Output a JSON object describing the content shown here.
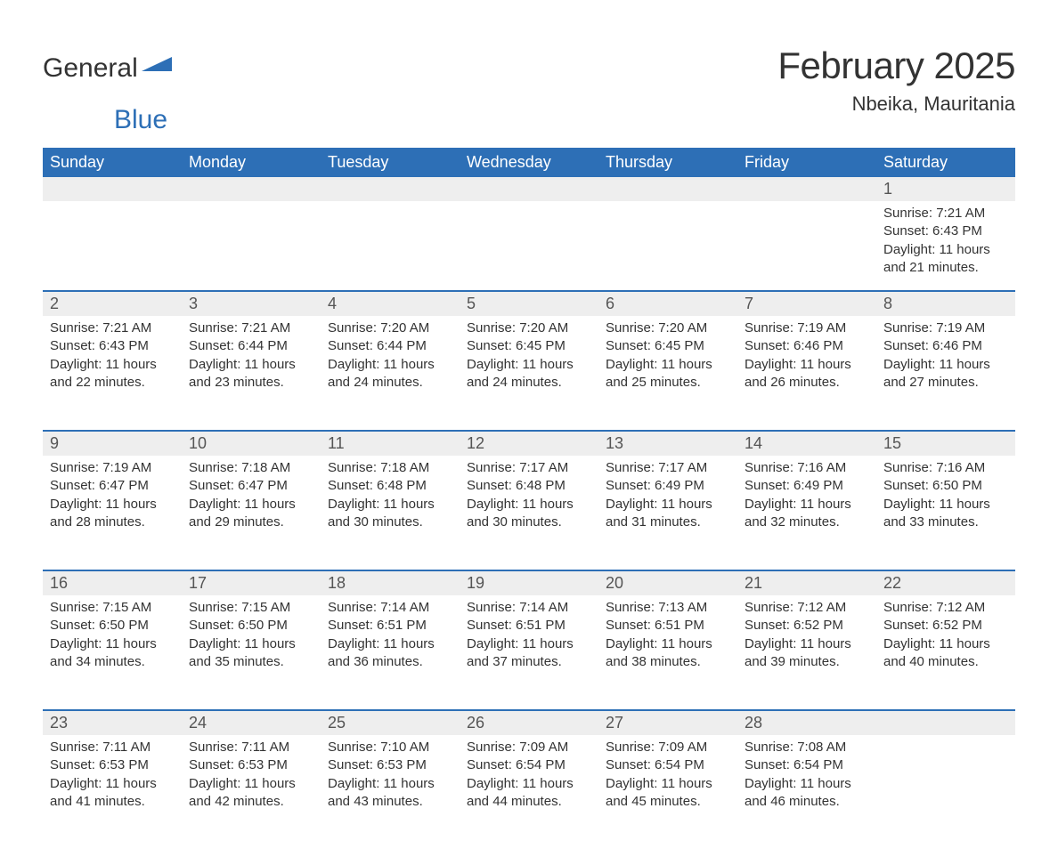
{
  "brand": {
    "name_part1": "General",
    "name_part2": "Blue",
    "accent_color": "#2d6fb6"
  },
  "header": {
    "month_title": "February 2025",
    "location": "Nbeika, Mauritania"
  },
  "styling": {
    "header_bg": "#2d6fb6",
    "header_text": "#ffffff",
    "daynum_bg": "#eeeeee",
    "row_border_color": "#2d6fb6",
    "body_text": "#333333",
    "page_bg": "#ffffff",
    "title_fontsize": 42,
    "location_fontsize": 22,
    "weekday_fontsize": 18,
    "daynum_fontsize": 18,
    "cell_fontsize": 15
  },
  "weekdays": [
    "Sunday",
    "Monday",
    "Tuesday",
    "Wednesday",
    "Thursday",
    "Friday",
    "Saturday"
  ],
  "weeks": [
    {
      "daynums": [
        "",
        "",
        "",
        "",
        "",
        "",
        "1"
      ],
      "cells": [
        null,
        null,
        null,
        null,
        null,
        null,
        {
          "sunrise": "Sunrise: 7:21 AM",
          "sunset": "Sunset: 6:43 PM",
          "day1": "Daylight: 11 hours",
          "day2": "and 21 minutes."
        }
      ]
    },
    {
      "daynums": [
        "2",
        "3",
        "4",
        "5",
        "6",
        "7",
        "8"
      ],
      "cells": [
        {
          "sunrise": "Sunrise: 7:21 AM",
          "sunset": "Sunset: 6:43 PM",
          "day1": "Daylight: 11 hours",
          "day2": "and 22 minutes."
        },
        {
          "sunrise": "Sunrise: 7:21 AM",
          "sunset": "Sunset: 6:44 PM",
          "day1": "Daylight: 11 hours",
          "day2": "and 23 minutes."
        },
        {
          "sunrise": "Sunrise: 7:20 AM",
          "sunset": "Sunset: 6:44 PM",
          "day1": "Daylight: 11 hours",
          "day2": "and 24 minutes."
        },
        {
          "sunrise": "Sunrise: 7:20 AM",
          "sunset": "Sunset: 6:45 PM",
          "day1": "Daylight: 11 hours",
          "day2": "and 24 minutes."
        },
        {
          "sunrise": "Sunrise: 7:20 AM",
          "sunset": "Sunset: 6:45 PM",
          "day1": "Daylight: 11 hours",
          "day2": "and 25 minutes."
        },
        {
          "sunrise": "Sunrise: 7:19 AM",
          "sunset": "Sunset: 6:46 PM",
          "day1": "Daylight: 11 hours",
          "day2": "and 26 minutes."
        },
        {
          "sunrise": "Sunrise: 7:19 AM",
          "sunset": "Sunset: 6:46 PM",
          "day1": "Daylight: 11 hours",
          "day2": "and 27 minutes."
        }
      ]
    },
    {
      "daynums": [
        "9",
        "10",
        "11",
        "12",
        "13",
        "14",
        "15"
      ],
      "cells": [
        {
          "sunrise": "Sunrise: 7:19 AM",
          "sunset": "Sunset: 6:47 PM",
          "day1": "Daylight: 11 hours",
          "day2": "and 28 minutes."
        },
        {
          "sunrise": "Sunrise: 7:18 AM",
          "sunset": "Sunset: 6:47 PM",
          "day1": "Daylight: 11 hours",
          "day2": "and 29 minutes."
        },
        {
          "sunrise": "Sunrise: 7:18 AM",
          "sunset": "Sunset: 6:48 PM",
          "day1": "Daylight: 11 hours",
          "day2": "and 30 minutes."
        },
        {
          "sunrise": "Sunrise: 7:17 AM",
          "sunset": "Sunset: 6:48 PM",
          "day1": "Daylight: 11 hours",
          "day2": "and 30 minutes."
        },
        {
          "sunrise": "Sunrise: 7:17 AM",
          "sunset": "Sunset: 6:49 PM",
          "day1": "Daylight: 11 hours",
          "day2": "and 31 minutes."
        },
        {
          "sunrise": "Sunrise: 7:16 AM",
          "sunset": "Sunset: 6:49 PM",
          "day1": "Daylight: 11 hours",
          "day2": "and 32 minutes."
        },
        {
          "sunrise": "Sunrise: 7:16 AM",
          "sunset": "Sunset: 6:50 PM",
          "day1": "Daylight: 11 hours",
          "day2": "and 33 minutes."
        }
      ]
    },
    {
      "daynums": [
        "16",
        "17",
        "18",
        "19",
        "20",
        "21",
        "22"
      ],
      "cells": [
        {
          "sunrise": "Sunrise: 7:15 AM",
          "sunset": "Sunset: 6:50 PM",
          "day1": "Daylight: 11 hours",
          "day2": "and 34 minutes."
        },
        {
          "sunrise": "Sunrise: 7:15 AM",
          "sunset": "Sunset: 6:50 PM",
          "day1": "Daylight: 11 hours",
          "day2": "and 35 minutes."
        },
        {
          "sunrise": "Sunrise: 7:14 AM",
          "sunset": "Sunset: 6:51 PM",
          "day1": "Daylight: 11 hours",
          "day2": "and 36 minutes."
        },
        {
          "sunrise": "Sunrise: 7:14 AM",
          "sunset": "Sunset: 6:51 PM",
          "day1": "Daylight: 11 hours",
          "day2": "and 37 minutes."
        },
        {
          "sunrise": "Sunrise: 7:13 AM",
          "sunset": "Sunset: 6:51 PM",
          "day1": "Daylight: 11 hours",
          "day2": "and 38 minutes."
        },
        {
          "sunrise": "Sunrise: 7:12 AM",
          "sunset": "Sunset: 6:52 PM",
          "day1": "Daylight: 11 hours",
          "day2": "and 39 minutes."
        },
        {
          "sunrise": "Sunrise: 7:12 AM",
          "sunset": "Sunset: 6:52 PM",
          "day1": "Daylight: 11 hours",
          "day2": "and 40 minutes."
        }
      ]
    },
    {
      "daynums": [
        "23",
        "24",
        "25",
        "26",
        "27",
        "28",
        ""
      ],
      "cells": [
        {
          "sunrise": "Sunrise: 7:11 AM",
          "sunset": "Sunset: 6:53 PM",
          "day1": "Daylight: 11 hours",
          "day2": "and 41 minutes."
        },
        {
          "sunrise": "Sunrise: 7:11 AM",
          "sunset": "Sunset: 6:53 PM",
          "day1": "Daylight: 11 hours",
          "day2": "and 42 minutes."
        },
        {
          "sunrise": "Sunrise: 7:10 AM",
          "sunset": "Sunset: 6:53 PM",
          "day1": "Daylight: 11 hours",
          "day2": "and 43 minutes."
        },
        {
          "sunrise": "Sunrise: 7:09 AM",
          "sunset": "Sunset: 6:54 PM",
          "day1": "Daylight: 11 hours",
          "day2": "and 44 minutes."
        },
        {
          "sunrise": "Sunrise: 7:09 AM",
          "sunset": "Sunset: 6:54 PM",
          "day1": "Daylight: 11 hours",
          "day2": "and 45 minutes."
        },
        {
          "sunrise": "Sunrise: 7:08 AM",
          "sunset": "Sunset: 6:54 PM",
          "day1": "Daylight: 11 hours",
          "day2": "and 46 minutes."
        },
        null
      ]
    }
  ]
}
